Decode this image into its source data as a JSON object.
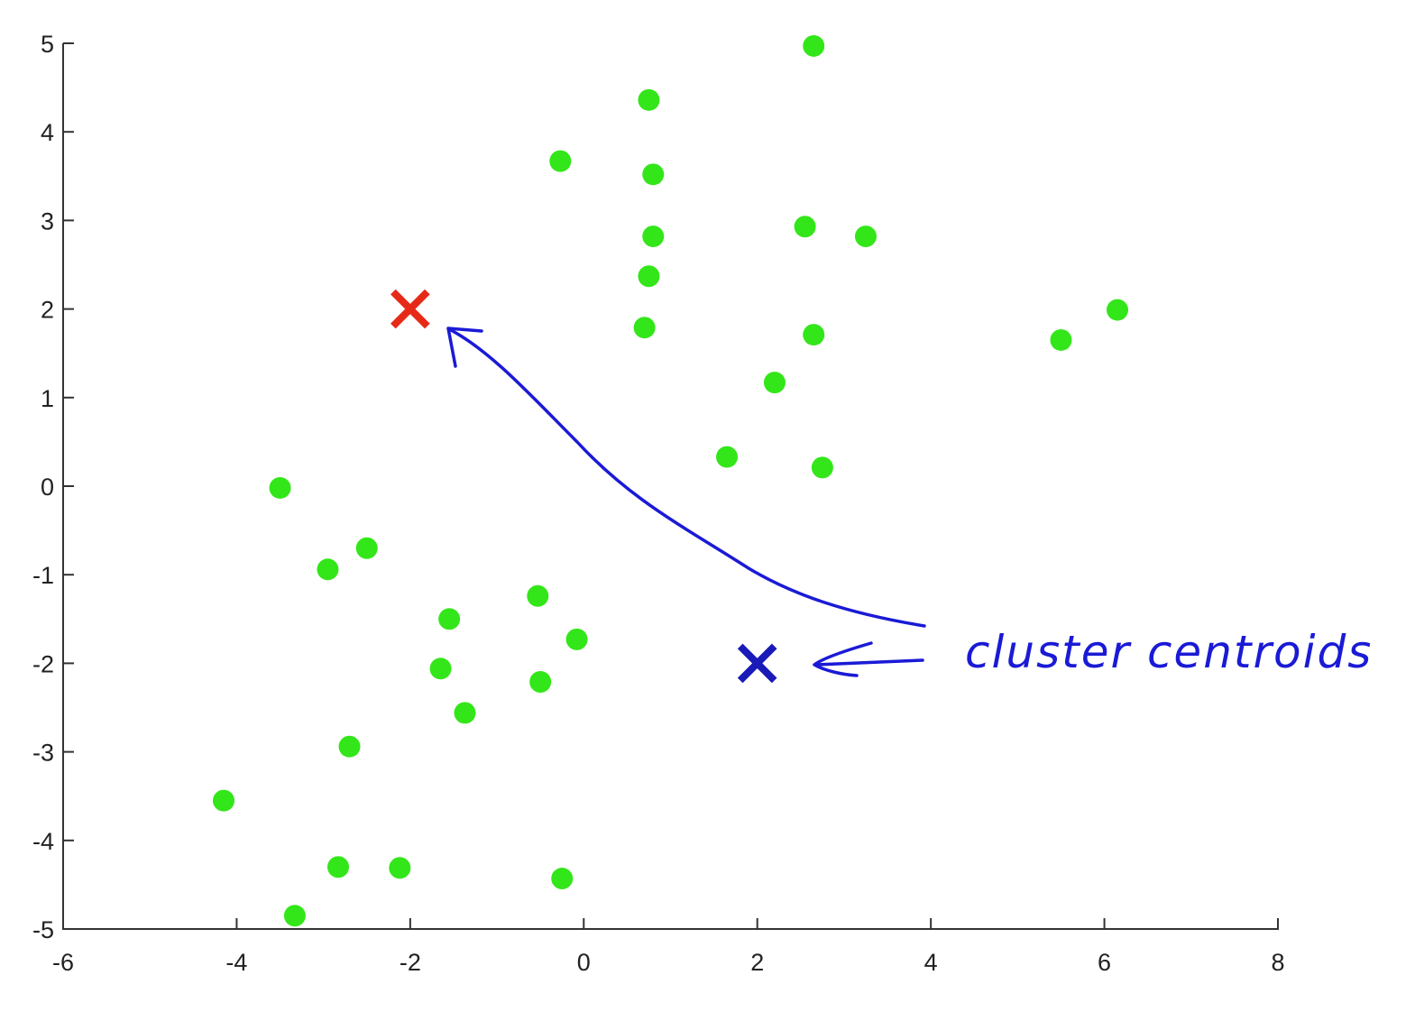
{
  "chart_data": {
    "type": "scatter",
    "title": "",
    "xlabel": "",
    "ylabel": "",
    "xlim": [
      -6,
      8
    ],
    "ylim": [
      -5,
      5
    ],
    "xticks": [
      "-6",
      "-4",
      "-2",
      "0",
      "2",
      "4",
      "6",
      "8"
    ],
    "yticks": [
      "5",
      "4",
      "3",
      "2",
      "1",
      "0",
      "-1",
      "-2",
      "-3",
      "-4",
      "-5"
    ],
    "grid": false,
    "series": [
      {
        "marker": "circle",
        "color": "#33e619",
        "points": [
          [
            2.65,
            4.97
          ],
          [
            0.75,
            4.36
          ],
          [
            -0.27,
            3.67
          ],
          [
            0.8,
            3.52
          ],
          [
            2.55,
            2.93
          ],
          [
            3.25,
            2.82
          ],
          [
            0.8,
            2.82
          ],
          [
            0.75,
            2.37
          ],
          [
            0.7,
            1.79
          ],
          [
            2.65,
            1.71
          ],
          [
            5.5,
            1.65
          ],
          [
            6.15,
            1.99
          ],
          [
            2.2,
            1.17
          ],
          [
            1.65,
            0.33
          ],
          [
            2.75,
            0.21
          ],
          [
            -3.5,
            -0.02
          ],
          [
            -2.5,
            -0.7
          ],
          [
            -2.95,
            -0.94
          ],
          [
            -0.53,
            -1.24
          ],
          [
            -1.55,
            -1.5
          ],
          [
            -0.08,
            -1.73
          ],
          [
            -1.65,
            -2.06
          ],
          [
            -0.5,
            -2.21
          ],
          [
            -1.37,
            -2.56
          ],
          [
            -2.7,
            -2.94
          ],
          [
            -4.15,
            -3.55
          ],
          [
            -2.83,
            -4.3
          ],
          [
            -2.12,
            -4.31
          ],
          [
            -0.25,
            -4.43
          ],
          [
            -3.33,
            -4.85
          ]
        ]
      }
    ],
    "centroids": [
      {
        "x": -2,
        "y": 2,
        "color": "#e62a17",
        "marker": "x"
      },
      {
        "x": 2,
        "y": -2,
        "color": "#1a1ab8",
        "marker": "x"
      }
    ],
    "annotations": [
      {
        "text": "cluster centroids",
        "color": "#1a1ad6"
      }
    ]
  }
}
